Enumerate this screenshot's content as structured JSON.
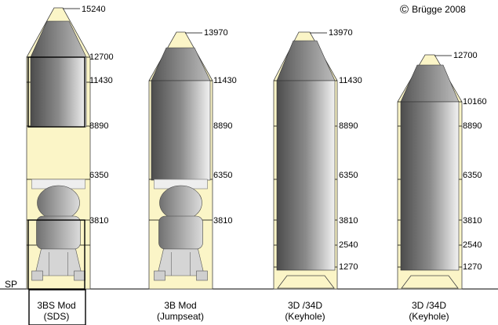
{
  "copyright": {
    "symbol": "©",
    "text": "Brügge 2008"
  },
  "station_point_label": "SP",
  "colors": {
    "fairing_fill": "#fbf5c7",
    "outline": "#000000",
    "payload_dark": "#555555",
    "payload_light": "#e4e4e4"
  },
  "configurations": [
    {
      "caption": [
        "3BS Mod",
        "(SDS)"
      ],
      "caption_boxed": true,
      "labels": [
        "15240",
        "12700",
        "11430",
        "8890",
        "6350",
        "3810"
      ],
      "payload": "gray cylinder with docking module"
    },
    {
      "caption": [
        "3B Mod",
        "(Jumpseat)"
      ],
      "caption_boxed": false,
      "labels": [
        "13970",
        "11430",
        "8890",
        "6350",
        "3810"
      ],
      "payload": "gray cylinder with docking module"
    },
    {
      "caption": [
        "3D /34D",
        "(Keyhole)"
      ],
      "caption_boxed": false,
      "labels": [
        "13970",
        "11430",
        "8890",
        "6350",
        "3810",
        "2540",
        "1270"
      ],
      "payload": "gray cylinder"
    },
    {
      "caption": [
        "3D /34D",
        "(Keyhole)"
      ],
      "caption_boxed": false,
      "labels": [
        "12700",
        "10160",
        "8890",
        "6350",
        "3810",
        "2540",
        "1270"
      ],
      "payload": "gray cylinder"
    }
  ]
}
